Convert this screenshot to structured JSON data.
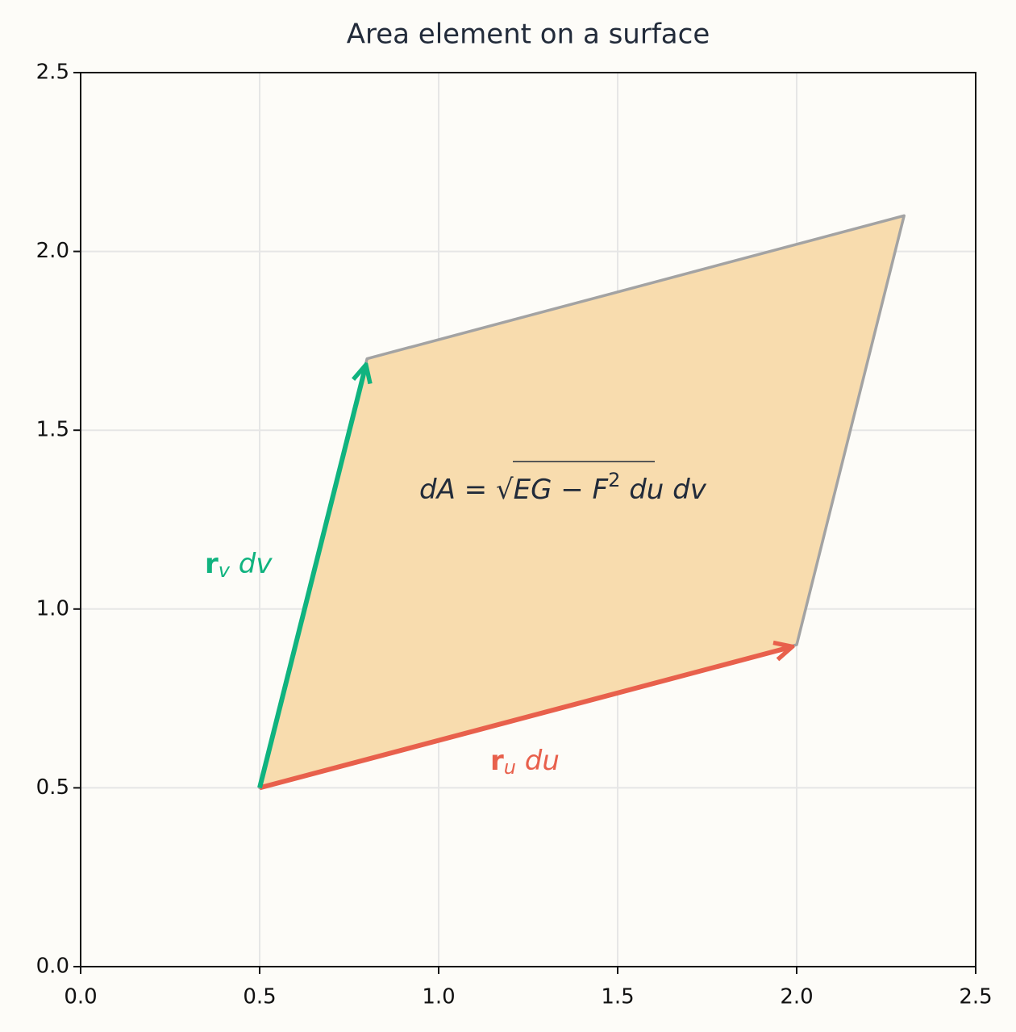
{
  "chart_data": {
    "type": "vector",
    "title": "Area element on a surface",
    "xlim": [
      0,
      2.5
    ],
    "ylim": [
      0,
      2.5
    ],
    "xticks": [
      {
        "value": 0,
        "label": "0.0"
      },
      0.5,
      {
        "value": 1,
        "label": "1.0"
      },
      1.5,
      {
        "value": 2,
        "label": "2.0"
      },
      2.5
    ],
    "yticks": [
      {
        "value": 0,
        "label": "0.0"
      },
      0.5,
      {
        "value": 1,
        "label": "1.0"
      },
      1.5,
      {
        "value": 2,
        "label": "2.0"
      },
      2.5
    ],
    "grid": true,
    "polygon": {
      "x": [
        0.5,
        2.0,
        2.3,
        0.8
      ],
      "y": [
        0.5,
        0.9,
        2.1,
        1.7
      ],
      "color": "#f8dcae",
      "edge_color": "#a3a3a3"
    },
    "vectors": [
      {
        "x": [
          0.5,
          2.0
        ],
        "y": [
          0.5,
          0.9
        ],
        "color": "#e8604c",
        "label": [
          {
            "text": "r",
            "style": "bold"
          },
          {
            "text": "u",
            "style": "sub"
          },
          {
            "text": " du",
            "style": "italic"
          }
        ]
      },
      {
        "x": [
          0.5,
          0.8
        ],
        "y": [
          0.5,
          1.7
        ],
        "color": "#10b37f",
        "label": [
          {
            "text": "r",
            "style": "bold"
          },
          {
            "text": "v",
            "style": "sub"
          },
          {
            "text": " dv",
            "style": "italic"
          }
        ]
      }
    ],
    "formula": [
      {
        "text": "dA",
        "style": "italic"
      },
      {
        "text": " = "
      },
      {
        "text": "√"
      },
      {
        "text": "EG − F",
        "style": "italic"
      },
      {
        "text": "2",
        "style": "sup"
      },
      {
        "text": " du dv",
        "style": "italic"
      }
    ]
  }
}
